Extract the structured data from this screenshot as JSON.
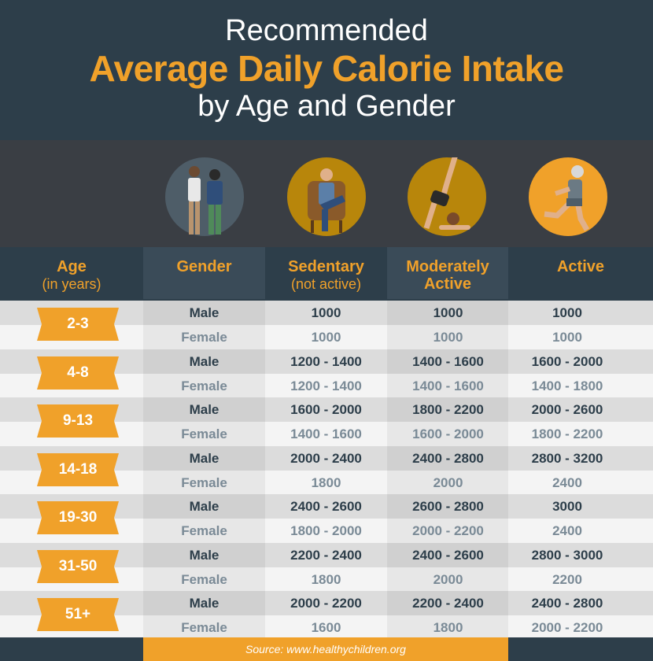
{
  "title": {
    "line1": "Recommended",
    "line2": "Average Daily Calorie Intake",
    "line3": "by Age and Gender"
  },
  "colors": {
    "accent": "#f0a12a",
    "dark": "#2d3e4a",
    "icon_band": "#3a3e44"
  },
  "icons": [
    "two-people-icon",
    "sitting-man-icon",
    "yoga-woman-icon",
    "running-man-icon"
  ],
  "columns": {
    "age": "Age",
    "age_sub": "(in years)",
    "gender": "Gender",
    "sedentary": "Sedentary",
    "sedentary_sub": "(not active)",
    "moderately": "Moderately",
    "moderately2": "Active",
    "active": "Active"
  },
  "chart_data": {
    "type": "table",
    "columns": [
      "Age (in years)",
      "Gender",
      "Sedentary (not active)",
      "Moderately Active",
      "Active"
    ],
    "rows": [
      {
        "age": "2-3",
        "male": {
          "gender": "Male",
          "sedentary": "1000",
          "moderate": "1000",
          "active": "1000"
        },
        "female": {
          "gender": "Female",
          "sedentary": "1000",
          "moderate": "1000",
          "active": "1000"
        }
      },
      {
        "age": "4-8",
        "male": {
          "gender": "Male",
          "sedentary": "1200 - 1400",
          "moderate": "1400 - 1600",
          "active": "1600 - 2000"
        },
        "female": {
          "gender": "Female",
          "sedentary": "1200 - 1400",
          "moderate": "1400 - 1600",
          "active": "1400 - 1800"
        }
      },
      {
        "age": "9-13",
        "male": {
          "gender": "Male",
          "sedentary": "1600 - 2000",
          "moderate": "1800 - 2200",
          "active": "2000 - 2600"
        },
        "female": {
          "gender": "Female",
          "sedentary": "1400 - 1600",
          "moderate": "1600 - 2000",
          "active": "1800 - 2200"
        }
      },
      {
        "age": "14-18",
        "male": {
          "gender": "Male",
          "sedentary": "2000 - 2400",
          "moderate": "2400 - 2800",
          "active": "2800 - 3200"
        },
        "female": {
          "gender": "Female",
          "sedentary": "1800",
          "moderate": "2000",
          "active": "2400"
        }
      },
      {
        "age": "19-30",
        "male": {
          "gender": "Male",
          "sedentary": "2400 - 2600",
          "moderate": "2600 - 2800",
          "active": "3000"
        },
        "female": {
          "gender": "Female",
          "sedentary": "1800 - 2000",
          "moderate": "2000 - 2200",
          "active": "2400"
        }
      },
      {
        "age": "31-50",
        "male": {
          "gender": "Male",
          "sedentary": "2200 - 2400",
          "moderate": "2400 - 2600",
          "active": "2800 - 3000"
        },
        "female": {
          "gender": "Female",
          "sedentary": "1800",
          "moderate": "2000",
          "active": "2200"
        }
      },
      {
        "age": "51+",
        "male": {
          "gender": "Male",
          "sedentary": "2000 - 2200",
          "moderate": "2200 - 2400",
          "active": "2400 - 2800"
        },
        "female": {
          "gender": "Female",
          "sedentary": "1600",
          "moderate": "1800",
          "active": "2000 - 2200"
        }
      }
    ]
  },
  "source": "Source: www.healthychildren.org"
}
